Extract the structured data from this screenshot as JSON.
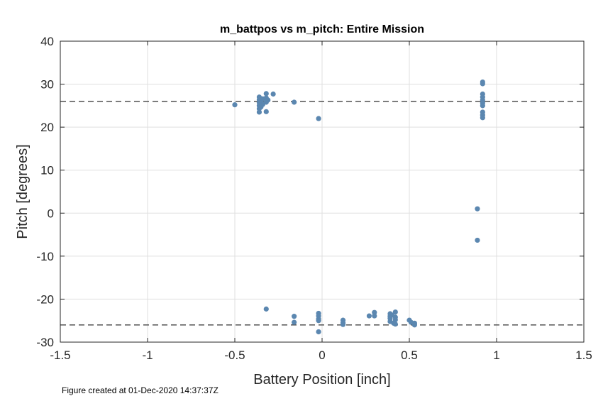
{
  "chart_data": {
    "type": "scatter",
    "title": "m_battpos vs m_pitch: Entire Mission",
    "xlabel": "Battery Position [inch]",
    "ylabel": "Pitch [degrees]",
    "xlim": [
      -1.5,
      1.5
    ],
    "ylim": [
      -30,
      40
    ],
    "xticks": [
      -1.5,
      -1,
      -0.5,
      0,
      0.5,
      1,
      1.5
    ],
    "xtick_labels": [
      "-1.5",
      "-1",
      "-0.5",
      "0",
      "0.5",
      "1",
      "1.5"
    ],
    "yticks": [
      -30,
      -20,
      -10,
      0,
      10,
      20,
      30,
      40
    ],
    "ytick_labels": [
      "-30",
      "-20",
      "-10",
      "0",
      "10",
      "20",
      "30",
      "40"
    ],
    "grid": true,
    "marker_color": "#5b87b0",
    "reference_line_color": "#404040",
    "reference_lines": [
      26,
      -26
    ],
    "points": [
      {
        "x": -0.5,
        "y": 25.2
      },
      {
        "x": -0.36,
        "y": 23.5
      },
      {
        "x": -0.36,
        "y": 24.3
      },
      {
        "x": -0.36,
        "y": 25.0
      },
      {
        "x": -0.36,
        "y": 25.7
      },
      {
        "x": -0.36,
        "y": 26.4
      },
      {
        "x": -0.36,
        "y": 27.0
      },
      {
        "x": -0.35,
        "y": 24.7
      },
      {
        "x": -0.35,
        "y": 26.0
      },
      {
        "x": -0.34,
        "y": 25.3
      },
      {
        "x": -0.34,
        "y": 26.6
      },
      {
        "x": -0.32,
        "y": 23.6
      },
      {
        "x": -0.32,
        "y": 25.8
      },
      {
        "x": -0.32,
        "y": 26.8
      },
      {
        "x": -0.32,
        "y": 27.8
      },
      {
        "x": -0.31,
        "y": 26.3
      },
      {
        "x": -0.28,
        "y": 27.7
      },
      {
        "x": -0.16,
        "y": 25.8
      },
      {
        "x": -0.02,
        "y": 22.0
      },
      {
        "x": 0.89,
        "y": 1.0
      },
      {
        "x": 0.89,
        "y": -6.3
      },
      {
        "x": 0.92,
        "y": 30.5
      },
      {
        "x": 0.92,
        "y": 30.1
      },
      {
        "x": 0.92,
        "y": 27.7
      },
      {
        "x": 0.92,
        "y": 27.0
      },
      {
        "x": 0.92,
        "y": 26.3
      },
      {
        "x": 0.92,
        "y": 25.6
      },
      {
        "x": 0.92,
        "y": 25.0
      },
      {
        "x": 0.92,
        "y": 23.5
      },
      {
        "x": 0.92,
        "y": 22.8
      },
      {
        "x": 0.92,
        "y": 22.2
      },
      {
        "x": -0.32,
        "y": -22.3
      },
      {
        "x": -0.16,
        "y": -24.0
      },
      {
        "x": -0.16,
        "y": -25.4
      },
      {
        "x": -0.02,
        "y": -23.3
      },
      {
        "x": -0.02,
        "y": -23.9
      },
      {
        "x": -0.02,
        "y": -24.6
      },
      {
        "x": -0.02,
        "y": -25.0
      },
      {
        "x": -0.02,
        "y": -27.6
      },
      {
        "x": 0.12,
        "y": -24.9
      },
      {
        "x": 0.12,
        "y": -25.5
      },
      {
        "x": 0.12,
        "y": -25.9
      },
      {
        "x": 0.27,
        "y": -23.9
      },
      {
        "x": 0.3,
        "y": -23.1
      },
      {
        "x": 0.3,
        "y": -23.9
      },
      {
        "x": 0.39,
        "y": -23.4
      },
      {
        "x": 0.39,
        "y": -24.0
      },
      {
        "x": 0.39,
        "y": -24.5
      },
      {
        "x": 0.39,
        "y": -25.2
      },
      {
        "x": 0.4,
        "y": -23.7
      },
      {
        "x": 0.41,
        "y": -25.6
      },
      {
        "x": 0.42,
        "y": -23.0
      },
      {
        "x": 0.42,
        "y": -24.2
      },
      {
        "x": 0.42,
        "y": -24.8
      },
      {
        "x": 0.42,
        "y": -25.8
      },
      {
        "x": 0.5,
        "y": -24.9
      },
      {
        "x": 0.51,
        "y": -25.4
      },
      {
        "x": 0.53,
        "y": -25.6
      },
      {
        "x": 0.53,
        "y": -26.0
      }
    ]
  },
  "footnote": "Figure created at 01-Dec-2020 14:37:37Z"
}
